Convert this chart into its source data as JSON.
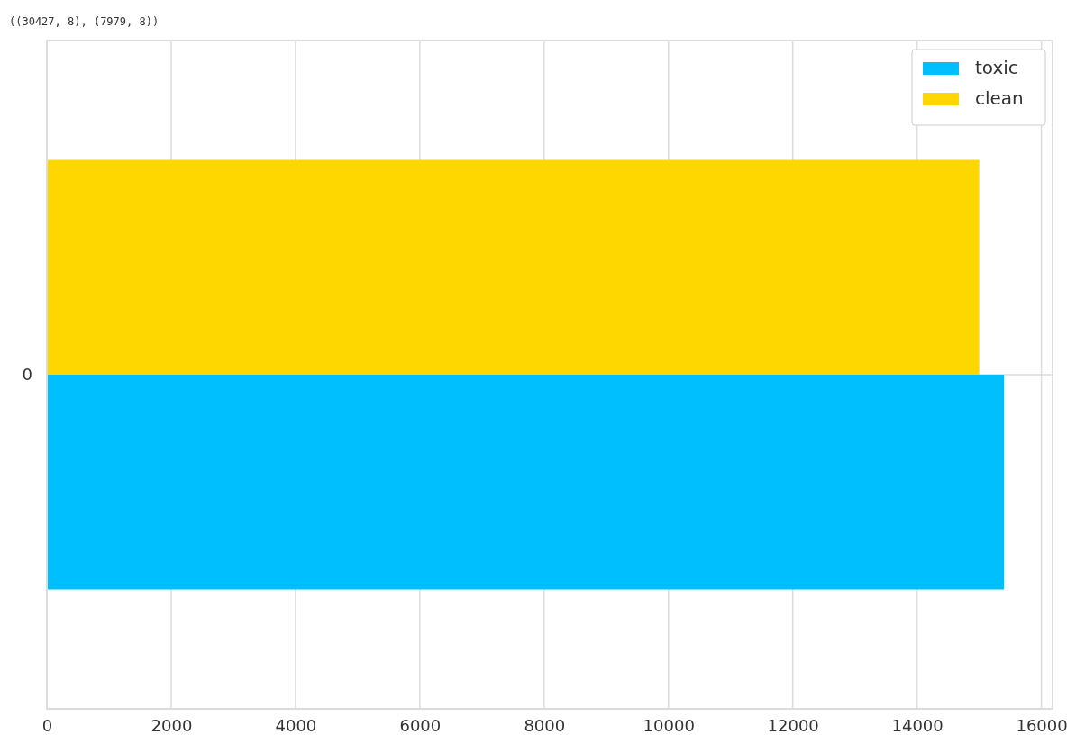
{
  "chart_data": {
    "type": "bar",
    "orientation": "horizontal",
    "annotations": [
      "((30427, 8), (7979, 8))"
    ],
    "categories": [
      "0"
    ],
    "series": [
      {
        "name": "toxic",
        "color": "#00bfff",
        "values": [
          15400
        ]
      },
      {
        "name": "clean",
        "color": "#ffd700",
        "values": [
          15000
        ]
      }
    ],
    "xlim": [
      0,
      16180
    ],
    "xticks": [
      0,
      2000,
      4000,
      6000,
      8000,
      10000,
      12000,
      14000,
      16000
    ],
    "grid": true,
    "legend": "top right"
  }
}
